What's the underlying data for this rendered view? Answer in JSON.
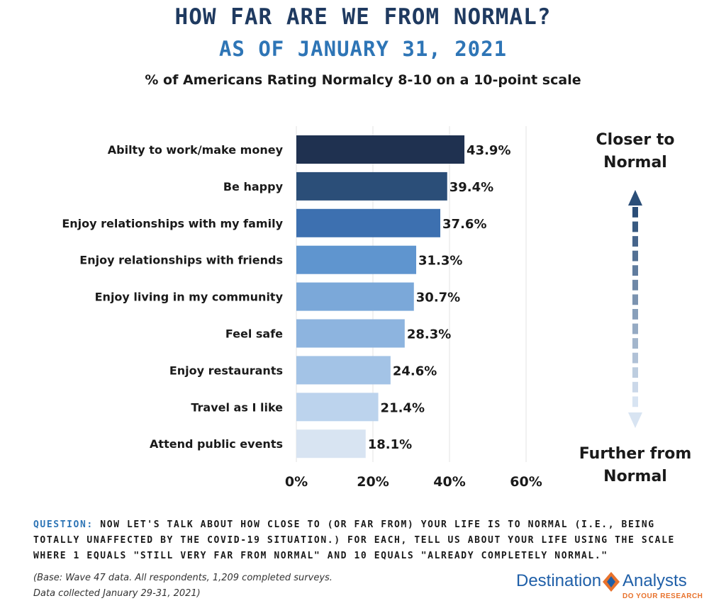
{
  "header": {
    "title": "HOW FAR ARE WE FROM NORMAL?",
    "subtitle": "AS OF JANUARY 31, 2021",
    "caption": "% of Americans Rating Normalcy 8-10 on a 10-point scale"
  },
  "chart_data": {
    "type": "bar",
    "orientation": "horizontal",
    "categories": [
      "Abilty to work/make money",
      "Be happy",
      "Enjoy relationships with my family",
      "Enjoy relationships with friends",
      "Enjoy living in my community",
      "Feel safe",
      "Enjoy restaurants",
      "Travel as I like",
      "Attend public events"
    ],
    "values": [
      43.9,
      39.4,
      37.6,
      31.3,
      30.7,
      28.3,
      24.6,
      21.4,
      18.1
    ],
    "value_labels": [
      "43.9%",
      "39.4%",
      "37.6%",
      "31.3%",
      "30.7%",
      "28.3%",
      "24.6%",
      "21.4%",
      "18.1%"
    ],
    "bar_colors": [
      "#1f3150",
      "#2b4e78",
      "#3d70b0",
      "#5f95cf",
      "#7ba8d9",
      "#8db4df",
      "#a3c3e6",
      "#bcd3ed",
      "#d8e4f2"
    ],
    "xlim": [
      0,
      60
    ],
    "x_ticks": [
      0,
      20,
      40,
      60
    ],
    "x_tick_labels": [
      "0%",
      "20%",
      "40%",
      "60%"
    ],
    "grid": true
  },
  "scale_arrow": {
    "top_label": "Closer to\nNormal",
    "bottom_label": "Further from\nNormal",
    "top_color": "#2b4e78",
    "bottom_color": "#d8e4f2"
  },
  "footer": {
    "question_label": "QUESTION:",
    "question_text": "NOW LET'S TALK ABOUT HOW CLOSE TO (OR FAR FROM) YOUR LIFE IS TO NORMAL (I.E., BEING TOTALLY UNAFFECTED BY THE COVID-19 SITUATION.)  FOR EACH, TELL US ABOUT YOUR LIFE USING THE SCALE WHERE 1 EQUALS \"STILL VERY FAR FROM NORMAL\" AND 10 EQUALS \"ALREADY COMPLETELY NORMAL.\"",
    "base_line1": "(Base: Wave 47 data. All respondents, 1,209 completed surveys.",
    "base_line2": "Data collected January 29-31, 2021)"
  },
  "logo": {
    "word1": "Destination",
    "word2": "Analysts",
    "tagline": "DO YOUR RESEARCH",
    "colors": {
      "blue": "#1f5fa8",
      "orange": "#e8722c"
    }
  }
}
